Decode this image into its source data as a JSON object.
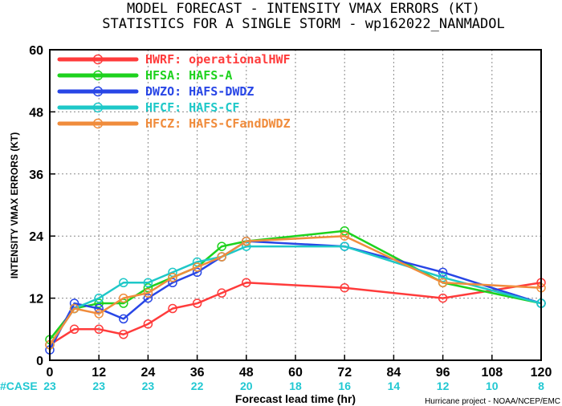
{
  "chart_data": {
    "type": "line",
    "title": "MODEL FORECAST - INTENSITY VMAX ERRORS (KT)",
    "subtitle": "STATISTICS FOR A SINGLE STORM - wp162022_NANMADOL",
    "xlabel": "Forecast lead time (hr)",
    "ylabel": "INTENSITY VMAX ERRORS (KT)",
    "xlim": [
      0,
      120
    ],
    "ylim": [
      0,
      60
    ],
    "xticks": [
      0,
      12,
      24,
      36,
      48,
      60,
      72,
      84,
      96,
      108,
      120
    ],
    "yticks": [
      0,
      12,
      24,
      36,
      48,
      60
    ],
    "grid": true,
    "legend_position": "top-left",
    "x": [
      0,
      6,
      12,
      18,
      24,
      30,
      36,
      42,
      48,
      72,
      96,
      120
    ],
    "series": [
      {
        "name": "HWRF: operationalHWF",
        "color": "#ff3b3b",
        "values": [
          3,
          6,
          6,
          5,
          7,
          10,
          11,
          13,
          15,
          14,
          12,
          15
        ]
      },
      {
        "name": "HFSA: HAFS-A",
        "color": "#1ed21e",
        "values": [
          4,
          10,
          11,
          11,
          14,
          16,
          18,
          22,
          23,
          25,
          15,
          11
        ]
      },
      {
        "name": "DWZO: HAFS-DWDZ",
        "color": "#2846e6",
        "values": [
          2,
          11,
          10,
          8,
          12,
          15,
          17,
          20,
          23,
          22,
          17,
          11
        ]
      },
      {
        "name": "HFCF: HAFS-CF",
        "color": "#1ec8c8",
        "values": [
          3,
          10,
          12,
          15,
          15,
          17,
          19,
          20,
          22,
          22,
          16,
          11
        ]
      },
      {
        "name": "HFCZ: HAFS-CFandDWDZ",
        "color": "#f08c3c",
        "values": [
          3,
          10,
          9,
          12,
          13,
          16,
          18,
          20,
          23,
          24,
          15,
          14
        ]
      }
    ],
    "case_label": "#CASE",
    "case_counts": [
      {
        "x": 0,
        "n": "23"
      },
      {
        "x": 12,
        "n": "23"
      },
      {
        "x": 24,
        "n": "23"
      },
      {
        "x": 36,
        "n": "22"
      },
      {
        "x": 48,
        "n": "20"
      },
      {
        "x": 60,
        "n": "18"
      },
      {
        "x": 72,
        "n": "16"
      },
      {
        "x": 84,
        "n": "14"
      },
      {
        "x": 96,
        "n": "12"
      },
      {
        "x": 108,
        "n": "10"
      },
      {
        "x": 120,
        "n": "8"
      }
    ],
    "credit": "Hurricane project - NOAA/NCEP/EMC"
  }
}
